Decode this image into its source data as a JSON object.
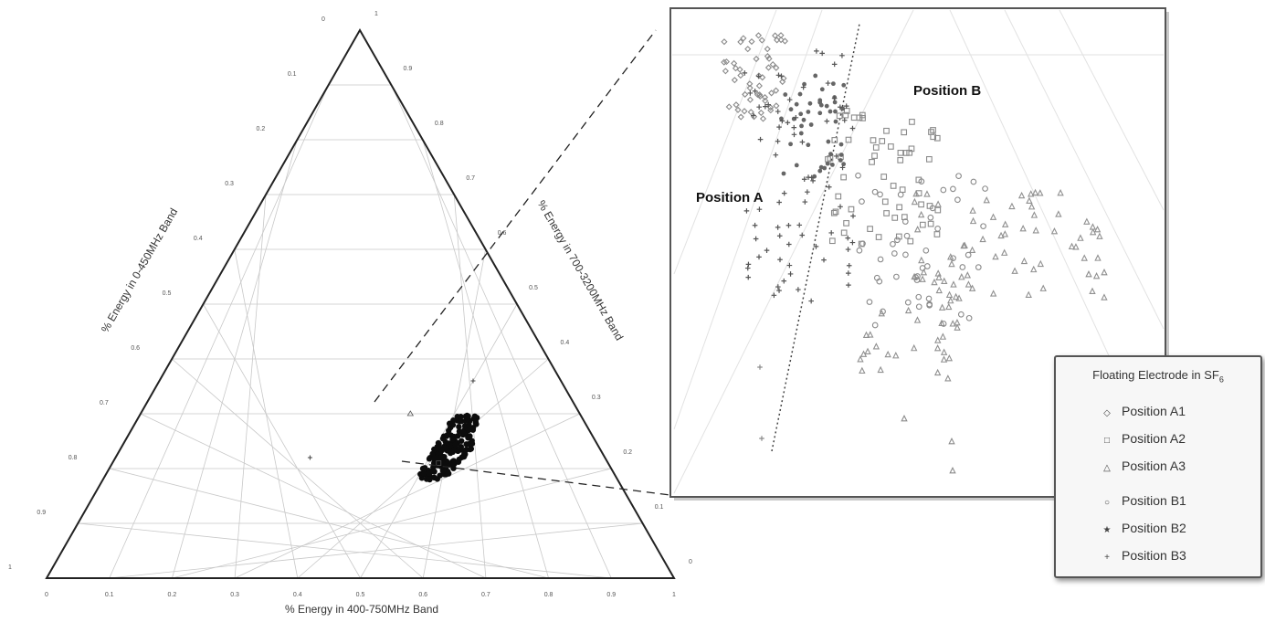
{
  "chart_data": [
    {
      "type": "scatter",
      "subtype": "ternary",
      "axes": {
        "bottom": {
          "label": "% Energy in 400-750MHz Band",
          "ticks": [
            "0",
            "0.1",
            "0.2",
            "0.3",
            "0.4",
            "0.5",
            "0.6",
            "0.7",
            "0.8",
            "0.9",
            "1"
          ]
        },
        "left": {
          "label": "% Energy in 0-450MHz Band",
          "ticks": [
            "0",
            "0.1",
            "0.2",
            "0.3",
            "0.4",
            "0.5",
            "0.6",
            "0.7",
            "0.8",
            "0.9",
            "1"
          ]
        },
        "right": {
          "label": "% Energy in  700-3200MHz Band",
          "ticks": [
            "1",
            "0.9",
            "0.8",
            "0.7",
            "0.6",
            "0.5",
            "0.4",
            "0.3",
            "0.2",
            "0.1",
            "0"
          ]
        }
      },
      "grid": true,
      "range": [
        0,
        1
      ],
      "cluster": {
        "x": [
          0.5,
          0.56
        ],
        "y": [
          0.18,
          0.3
        ]
      },
      "outliers": [
        {
          "x": 0.5,
          "y": 0.36,
          "marker": "cross"
        },
        {
          "x": 0.43,
          "y": 0.3,
          "marker": "triangle"
        },
        {
          "x": 0.31,
          "y": 0.22,
          "marker": "cross"
        },
        {
          "x": 0.52,
          "y": 0.21,
          "marker": "square"
        }
      ]
    },
    {
      "type": "scatter",
      "subtype": "ternary-zoom",
      "annotations": [
        "Position A",
        "Position B"
      ],
      "legend": {
        "title": "Floating Electrode in SF",
        "title_subscript": "6",
        "entries": [
          {
            "label": "Position A1",
            "marker": "diamond"
          },
          {
            "label": "Position A2",
            "marker": "square"
          },
          {
            "label": "Position A3",
            "marker": "triangle"
          },
          {
            "label": "Position B1",
            "marker": "circle"
          },
          {
            "label": "Position B2",
            "marker": "star"
          },
          {
            "label": "Position B3",
            "marker": "cross"
          }
        ]
      }
    }
  ]
}
